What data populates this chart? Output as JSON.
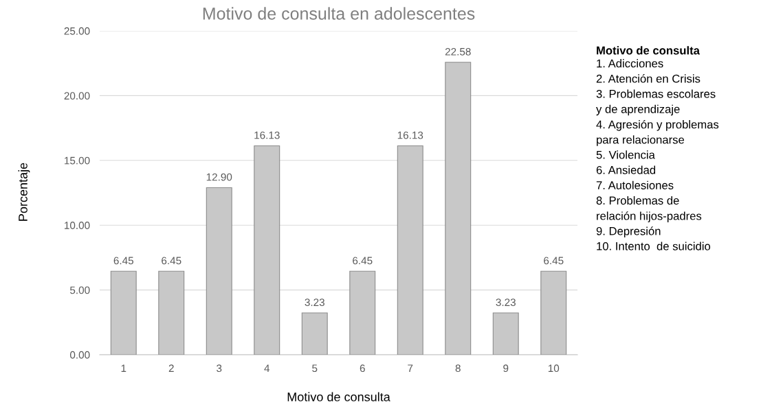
{
  "chart_data": {
    "type": "bar",
    "title": "Motivo de consulta en adolescentes",
    "xlabel": "Motivo de consulta",
    "ylabel": "Porcentaje",
    "categories": [
      "1",
      "2",
      "3",
      "4",
      "5",
      "6",
      "7",
      "8",
      "9",
      "10"
    ],
    "values": [
      6.45,
      6.45,
      12.9,
      16.13,
      3.23,
      6.45,
      16.13,
      22.58,
      3.23,
      6.45
    ],
    "value_labels": [
      "6.45",
      "6.45",
      "12.90",
      "16.13",
      "3.23",
      "6.45",
      "16.13",
      "22.58",
      "3.23",
      "6.45"
    ],
    "color": "#c8c8c8",
    "ylim": [
      0,
      25
    ],
    "yticks": [
      {
        "value": 0,
        "label": "0.00"
      },
      {
        "value": 5,
        "label": "5.00"
      },
      {
        "value": 10,
        "label": "10.00"
      },
      {
        "value": 15,
        "label": "15.00"
      },
      {
        "value": 20,
        "label": "20.00"
      },
      {
        "value": 25,
        "label": "25.00"
      }
    ],
    "grid": "y",
    "legend_title": "Motivo de consulta",
    "annotations": [
      "1. Adicciones",
      "2. Atención en Crisis",
      "3. Problemas escolares\ny de aprendizaje",
      "4. Agresión y problemas\npara relacionarse",
      "5. Violencia",
      "6. Ansiedad",
      "7. Autolesiones",
      "8. Problemas de\nrelación hijos-padres",
      "9. Depresión",
      "10. Intento  de suicidio"
    ]
  }
}
